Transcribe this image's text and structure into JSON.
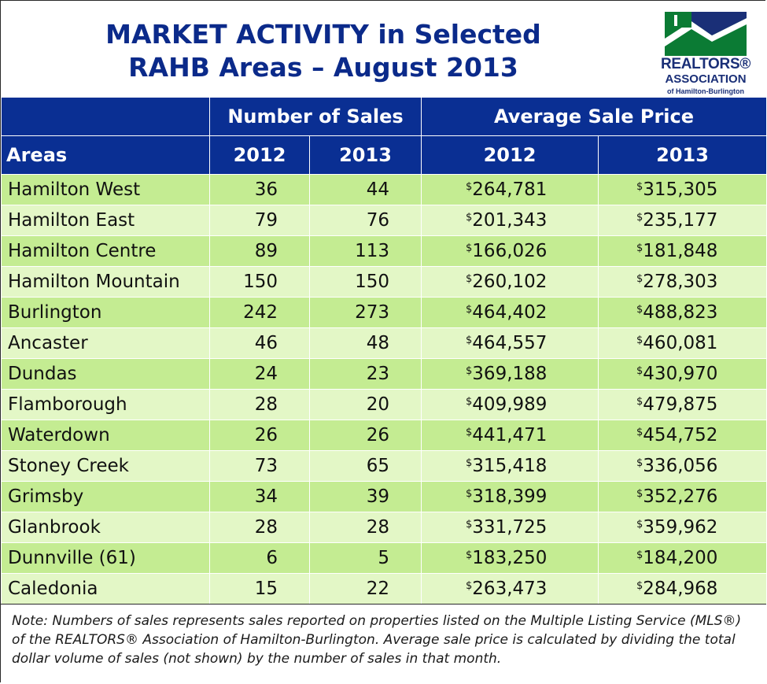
{
  "title": {
    "line1": "MARKET ACTIVITY in Selected",
    "line2": "RAHB Areas – August 2013"
  },
  "logo": {
    "line1": "REALTORS®",
    "line2": "ASSOCIATION",
    "line3": "of Hamilton-Burlington"
  },
  "table": {
    "group_headers": [
      "Number of Sales",
      "Average Sale Price"
    ],
    "columns": [
      "Areas",
      "2012",
      "2013",
      "2012",
      "2013"
    ],
    "currency_symbol": "$",
    "rows": [
      {
        "area": "Hamilton West",
        "sales_2012": "36",
        "sales_2013": "44",
        "price_2012": "264,781",
        "price_2013": "315,305"
      },
      {
        "area": "Hamilton East",
        "sales_2012": "79",
        "sales_2013": "76",
        "price_2012": "201,343",
        "price_2013": "235,177"
      },
      {
        "area": "Hamilton Centre",
        "sales_2012": "89",
        "sales_2013": "113",
        "price_2012": "166,026",
        "price_2013": "181,848"
      },
      {
        "area": "Hamilton Mountain",
        "sales_2012": "150",
        "sales_2013": "150",
        "price_2012": "260,102",
        "price_2013": "278,303"
      },
      {
        "area": "Burlington",
        "sales_2012": "242",
        "sales_2013": "273",
        "price_2012": "464,402",
        "price_2013": "488,823"
      },
      {
        "area": "Ancaster",
        "sales_2012": "46",
        "sales_2013": "48",
        "price_2012": "464,557",
        "price_2013": "460,081"
      },
      {
        "area": "Dundas",
        "sales_2012": "24",
        "sales_2013": "23",
        "price_2012": "369,188",
        "price_2013": "430,970"
      },
      {
        "area": "Flamborough",
        "sales_2012": "28",
        "sales_2013": "20",
        "price_2012": "409,989",
        "price_2013": "479,875"
      },
      {
        "area": "Waterdown",
        "sales_2012": "26",
        "sales_2013": "26",
        "price_2012": "441,471",
        "price_2013": "454,752"
      },
      {
        "area": "Stoney Creek",
        "sales_2012": "73",
        "sales_2013": "65",
        "price_2012": "315,418",
        "price_2013": "336,056"
      },
      {
        "area": "Grimsby",
        "sales_2012": "34",
        "sales_2013": "39",
        "price_2012": "318,399",
        "price_2013": "352,276"
      },
      {
        "area": "Glanbrook",
        "sales_2012": "28",
        "sales_2013": "28",
        "price_2012": "331,725",
        "price_2013": "359,962"
      },
      {
        "area": "Dunnville (61)",
        "sales_2012": "6",
        "sales_2013": "5",
        "price_2012": "183,250",
        "price_2013": "184,200"
      },
      {
        "area": "Caledonia",
        "sales_2012": "15",
        "sales_2013": "22",
        "price_2012": "263,473",
        "price_2013": "284,968"
      }
    ]
  },
  "note": "Note:  Numbers of sales represents sales reported on properties listed on the Multiple Listing Service (MLS®) of the REALTORS® Association of Hamilton-Burlington.  Average sale price is calculated by dividing the total dollar volume of sales (not shown) by the number of sales in that month.",
  "colors": {
    "header_blue": "#0a2f93",
    "title_blue": "#0b2a8a",
    "row_green_dark": "#c4ec92",
    "row_green_light": "#e3f7c6",
    "logo_green": "#0b7b34"
  }
}
